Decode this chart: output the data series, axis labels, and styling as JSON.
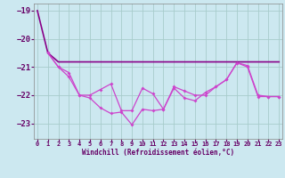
{
  "xlabel": "Windchill (Refroidissement éolien,°C)",
  "bg_color": "#cce8f0",
  "grid_color": "#a8cccc",
  "xlim_min": -0.3,
  "xlim_max": 23.3,
  "ylim_min": -23.55,
  "ylim_max": -18.75,
  "yticks": [
    -23,
    -22,
    -21,
    -20,
    -19
  ],
  "xticks": [
    0,
    1,
    2,
    3,
    4,
    5,
    6,
    7,
    8,
    9,
    10,
    11,
    12,
    13,
    14,
    15,
    16,
    17,
    18,
    19,
    20,
    21,
    22,
    23
  ],
  "color1": "#880088",
  "color2": "#cc44cc",
  "s1_x": [
    0,
    1,
    2,
    3,
    4,
    5,
    6,
    7,
    8,
    9,
    10,
    11,
    12,
    13,
    14,
    15,
    16,
    17,
    18,
    19,
    20,
    21,
    22,
    23
  ],
  "s1_y": [
    -19.0,
    -20.5,
    -20.82,
    -20.82,
    -20.82,
    -20.82,
    -20.82,
    -20.82,
    -20.82,
    -20.82,
    -20.82,
    -20.82,
    -20.82,
    -20.82,
    -20.82,
    -20.82,
    -20.82,
    -20.82,
    -20.82,
    -20.82,
    -20.82,
    -20.82,
    -20.82,
    -20.82
  ],
  "s2_x": [
    1,
    2,
    3,
    4,
    5,
    6,
    7,
    8,
    9,
    10,
    11,
    12,
    13,
    14,
    15,
    16,
    17,
    18,
    19,
    20,
    21,
    22,
    23
  ],
  "s2_y": [
    -20.5,
    -21.0,
    -21.2,
    -22.0,
    -22.0,
    -21.8,
    -21.6,
    -22.55,
    -22.55,
    -21.75,
    -21.95,
    -22.5,
    -21.7,
    -21.85,
    -22.0,
    -22.0,
    -21.7,
    -21.45,
    -20.85,
    -20.95,
    -22.0,
    -22.05,
    -22.05
  ],
  "s3_x": [
    1,
    2,
    3,
    4,
    5,
    6,
    7,
    8,
    9,
    10,
    11,
    12,
    13,
    14,
    15,
    16,
    17,
    18,
    19,
    20,
    21,
    22,
    23
  ],
  "s3_y": [
    -20.5,
    -21.0,
    -21.35,
    -22.0,
    -22.1,
    -22.45,
    -22.65,
    -22.6,
    -23.05,
    -22.5,
    -22.55,
    -22.5,
    -21.75,
    -22.1,
    -22.2,
    -21.9,
    -21.7,
    -21.45,
    -20.85,
    -21.0,
    -22.05,
    -22.05,
    -22.05
  ],
  "tick_color": "#660066",
  "xlabel_size": 5.5,
  "ytick_size": 6.5,
  "xtick_size": 5.0
}
